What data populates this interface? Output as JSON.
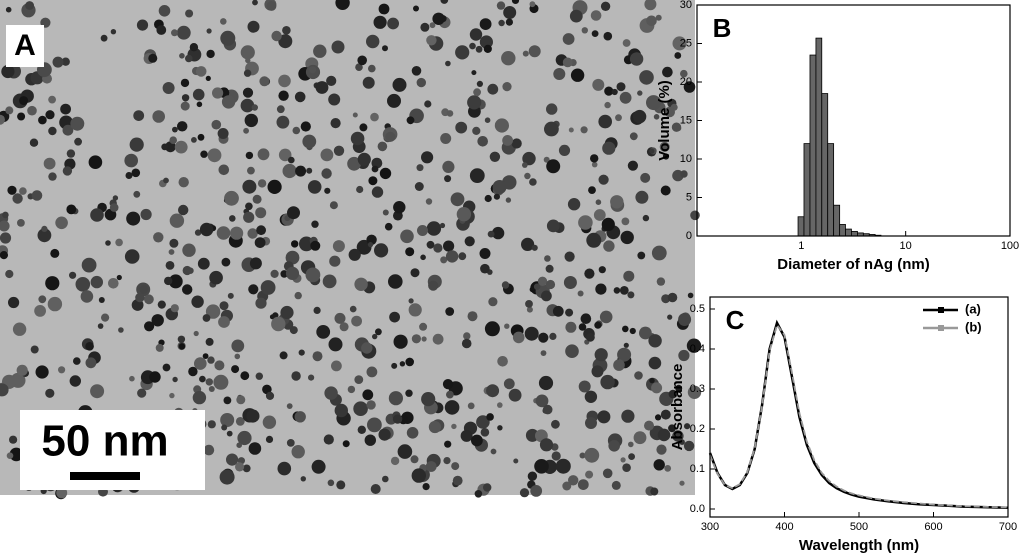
{
  "image": {
    "label": "A",
    "scale_bar": "50 nm"
  },
  "chart_data": [
    {
      "type": "histogram",
      "label": "B",
      "x_label": "Diameter of nAg (nm)",
      "y_label": "Volume (%)",
      "bins": [
        0.93,
        1.06,
        1.21,
        1.38,
        1.57,
        1.79,
        2.04,
        2.33,
        2.65,
        3.02,
        3.45,
        3.93,
        4.48,
        5.1,
        5.8
      ],
      "values": [
        2.5,
        12,
        23.5,
        25.7,
        18.5,
        12,
        4,
        1.5,
        0.9,
        0.6,
        0.4,
        0.3,
        0.2,
        0.1
      ],
      "color": "#666666",
      "xlog": true,
      "xlim": [
        0.1,
        100
      ],
      "xticks": [
        1,
        10,
        100
      ],
      "ylim": [
        0,
        30
      ],
      "yticks": [
        0,
        5,
        10,
        15,
        20,
        25,
        30
      ]
    },
    {
      "type": "line",
      "label": "C",
      "x_label": "Wavelength (nm)",
      "y_label": "Absorbance",
      "x": [
        300,
        310,
        320,
        330,
        340,
        350,
        360,
        370,
        380,
        390,
        400,
        410,
        420,
        430,
        440,
        450,
        460,
        470,
        480,
        490,
        500,
        520,
        540,
        560,
        580,
        600,
        620,
        640,
        660,
        680,
        700
      ],
      "series": [
        {
          "name": "(a)",
          "color": "#000000",
          "values": [
            0.14,
            0.09,
            0.06,
            0.05,
            0.06,
            0.09,
            0.15,
            0.26,
            0.4,
            0.465,
            0.43,
            0.33,
            0.23,
            0.16,
            0.115,
            0.085,
            0.065,
            0.052,
            0.043,
            0.036,
            0.031,
            0.024,
            0.019,
            0.015,
            0.012,
            0.01,
            0.008,
            0.006,
            0.005,
            0.004,
            0.003
          ]
        },
        {
          "name": "(b)",
          "color": "#999999",
          "values": [
            0.135,
            0.088,
            0.06,
            0.052,
            0.062,
            0.092,
            0.152,
            0.258,
            0.395,
            0.46,
            0.435,
            0.34,
            0.24,
            0.168,
            0.122,
            0.09,
            0.07,
            0.056,
            0.046,
            0.039,
            0.034,
            0.026,
            0.021,
            0.017,
            0.014,
            0.011,
            0.009,
            0.007,
            0.006,
            0.005,
            0.004
          ]
        }
      ],
      "legend": "upper right",
      "xlim": [
        300,
        700
      ],
      "xticks": [
        300,
        400,
        500,
        600,
        700
      ],
      "ylim": [
        -0.02,
        0.53
      ],
      "yticks": [
        {
          "value": 0,
          "label": "0.0"
        },
        0.1,
        0.2,
        0.3,
        0.4,
        0.5
      ]
    }
  ]
}
